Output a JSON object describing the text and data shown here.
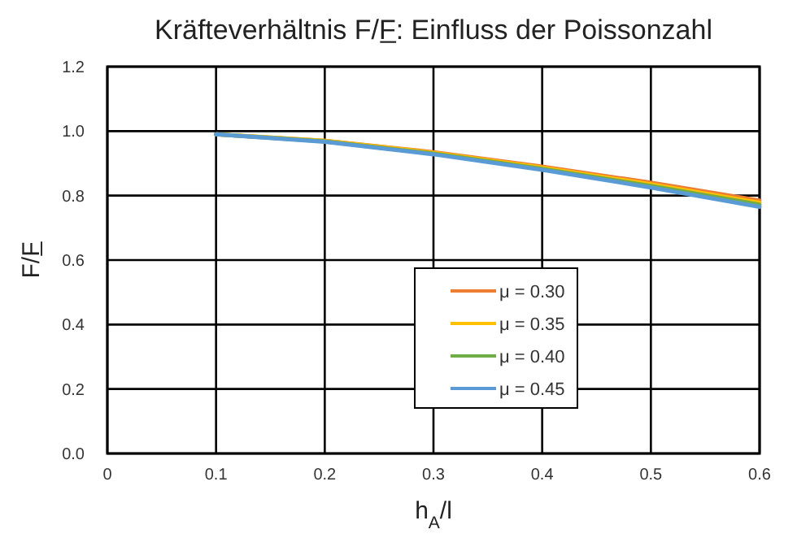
{
  "chart_data": {
    "type": "line",
    "title": "Kräfteverhältnis F/F̲: Einfluss der Poissonzahl",
    "xlabel": "h$_{A}$/l",
    "ylabel": "F/F̲",
    "x": [
      0.1,
      0.2,
      0.3,
      0.4,
      0.5,
      0.6
    ],
    "xlim": [
      0,
      0.6
    ],
    "xticks": [
      0,
      0.1,
      0.2,
      0.3,
      0.4,
      0.5,
      0.6
    ],
    "ylim": [
      0,
      1.2
    ],
    "yticks": [
      {
        "value": 0,
        "label": "0.0"
      },
      0.2,
      0.4,
      0.6,
      0.8,
      {
        "value": 1,
        "label": "1.0"
      },
      1.2
    ],
    "grid": true,
    "legend": "bottom right",
    "marker": "none",
    "line_style": "solid",
    "series": [
      {
        "name": "μ = 0.30",
        "color": "#ed7d31",
        "values": [
          0.99,
          0.97,
          0.935,
          0.89,
          0.84,
          0.785
        ]
      },
      {
        "name": "μ = 0.35",
        "color": "#ffc000",
        "values": [
          0.99,
          0.97,
          0.933,
          0.887,
          0.835,
          0.778
        ]
      },
      {
        "name": "μ = 0.40",
        "color": "#70ad47",
        "values": [
          0.99,
          0.968,
          0.93,
          0.883,
          0.83,
          0.772
        ]
      },
      {
        "name": "μ = 0.45",
        "color": "#5b9bd5",
        "values": [
          0.99,
          0.967,
          0.928,
          0.88,
          0.825,
          0.765
        ]
      }
    ]
  }
}
